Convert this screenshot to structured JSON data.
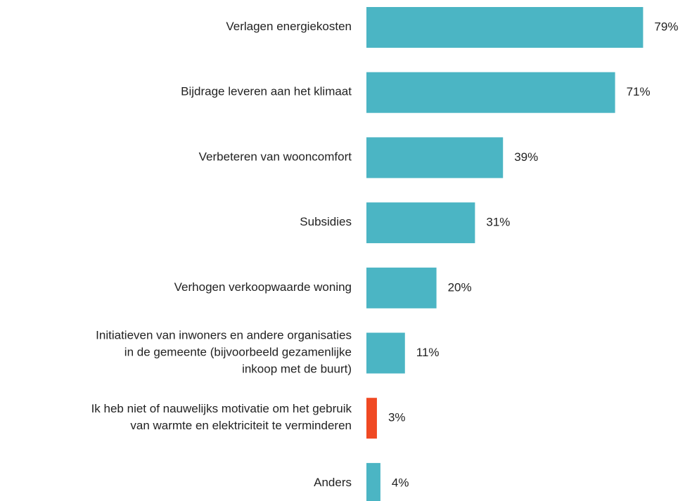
{
  "chart_data": {
    "type": "bar",
    "orientation": "horizontal",
    "categories": [
      "Verlagen energiekosten",
      "Bijdrage leveren aan het klimaat",
      "Verbeteren van wooncomfort",
      "Subsidies",
      "Verhogen verkoopwaarde woning",
      "Initiatieven van inwoners en andere organisaties\nin de gemeente (bijvoorbeeld gezamenlijke\ninkoop met de buurt)",
      "Ik heb niet of nauwelijks motivatie om het gebruik\nvan warmte en elektriciteit te verminderen",
      "Anders"
    ],
    "values": [
      79,
      71,
      39,
      31,
      20,
      11,
      3,
      4
    ],
    "value_labels": [
      "79%",
      "71%",
      "39%",
      "31%",
      "20%",
      "11%",
      "3%",
      "4%"
    ],
    "colors": [
      "#4bb5c4",
      "#4bb5c4",
      "#4bb5c4",
      "#4bb5c4",
      "#4bb5c4",
      "#4bb5c4",
      "#f04923",
      "#4bb5c4"
    ]
  }
}
